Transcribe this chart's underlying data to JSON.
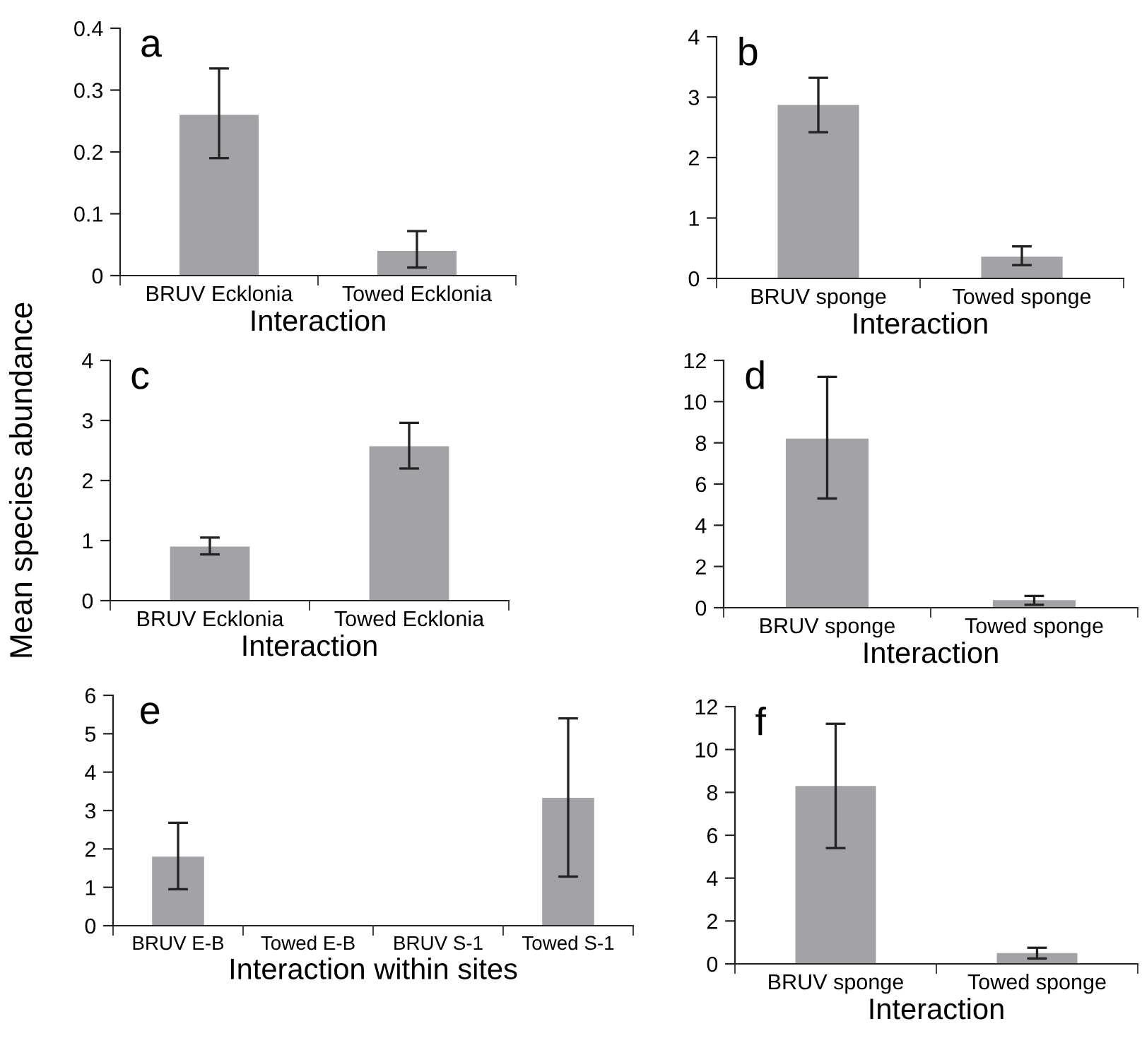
{
  "chart_data": [
    {
      "type": "bar",
      "title": "a",
      "xlabel": "Interaction",
      "categories": [
        "BRUV Ecklonia",
        "Towed Ecklonia"
      ],
      "values": [
        0.26,
        0.04
      ],
      "errors": [
        [
          0.19,
          0.335
        ],
        [
          0.013,
          0.072
        ]
      ],
      "color": "#a3a2a7",
      "ylim": [
        0,
        0.4
      ],
      "yticks": [
        0,
        0.1,
        0.2,
        0.3,
        0.4
      ],
      "grid": false
    },
    {
      "type": "bar",
      "title": "b",
      "xlabel": "Interaction",
      "categories": [
        "BRUV sponge",
        "Towed sponge"
      ],
      "values": [
        2.87,
        0.36
      ],
      "errors": [
        [
          2.42,
          3.32
        ],
        [
          0.22,
          0.53
        ]
      ],
      "color": "#a3a2a7",
      "ylim": [
        0,
        4
      ],
      "yticks": [
        0,
        1,
        2,
        3,
        4
      ],
      "grid": false
    },
    {
      "type": "bar",
      "title": "c",
      "xlabel": "Interaction",
      "ylabel": "Mean species abundance",
      "categories": [
        "BRUV Ecklonia",
        "Towed Ecklonia"
      ],
      "values": [
        0.9,
        2.57
      ],
      "errors": [
        [
          0.77,
          1.05
        ],
        [
          2.2,
          2.96
        ]
      ],
      "color": "#a3a2a7",
      "ylim": [
        0,
        4
      ],
      "yticks": [
        0,
        1,
        2,
        3,
        4
      ],
      "grid": false
    },
    {
      "type": "bar",
      "title": "d",
      "xlabel": "Interaction",
      "categories": [
        "BRUV sponge",
        "Towed sponge"
      ],
      "values": [
        8.2,
        0.37
      ],
      "errors": [
        [
          5.3,
          11.2
        ],
        [
          0.14,
          0.57
        ]
      ],
      "color": "#a3a2a7",
      "ylim": [
        0,
        12
      ],
      "yticks": [
        0,
        2,
        4,
        6,
        8,
        10,
        12
      ],
      "grid": false
    },
    {
      "type": "bar",
      "title": "e",
      "xlabel": "Interaction within sites",
      "categories": [
        "BRUV E-B",
        "Towed E-B",
        "BRUV S-1",
        "Towed S-1"
      ],
      "values": [
        1.8,
        0,
        0,
        3.33
      ],
      "errors": [
        [
          0.95,
          2.68
        ],
        null,
        null,
        [
          1.28,
          5.4
        ]
      ],
      "color": "#a3a2a7",
      "ylim": [
        0,
        6
      ],
      "yticks": [
        0,
        1,
        2,
        3,
        4,
        5,
        6
      ],
      "grid": false
    },
    {
      "type": "bar",
      "title": "f",
      "xlabel": "Interaction",
      "categories": [
        "BRUV sponge",
        "Towed sponge"
      ],
      "values": [
        8.3,
        0.5
      ],
      "errors": [
        [
          5.4,
          11.2
        ],
        [
          0.25,
          0.75
        ]
      ],
      "color": "#a3a2a7",
      "ylim": [
        0,
        12
      ],
      "yticks": [
        0,
        2,
        4,
        6,
        8,
        10,
        12
      ],
      "grid": false
    }
  ]
}
